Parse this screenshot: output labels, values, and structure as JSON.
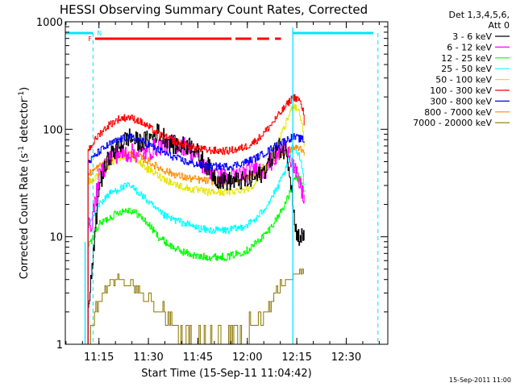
{
  "chart_data": {
    "type": "line",
    "title": "HESSI Observing Summary Count Rates, Corrected",
    "xlabel": "Start Time (15-Sep-11 11:04:42)",
    "ylabel_main": "Corrected Count Rate (s",
    "ylabel_sup1": "-1",
    "ylabel_mid": " detector",
    "ylabel_sup2": "-1",
    "ylabel_end": ")",
    "y_scale": "log",
    "ylim": [
      1,
      1000
    ],
    "xlim_minutes": [
      11.08,
      12.71
    ],
    "xlim": [
      "11:04:42",
      "12:47:30"
    ],
    "x_ticks": [
      "11:15",
      "11:30",
      "11:45",
      "12:00",
      "12:15",
      "12:30"
    ],
    "x_tick_minutes": [
      11.25,
      11.5,
      11.75,
      12.0,
      12.25,
      12.5
    ],
    "y_ticks": [
      "1",
      "10",
      "100",
      "1000"
    ],
    "y_tick_values": [
      1,
      10,
      100,
      1000
    ],
    "legend_header": [
      "Det 1,3,4,5,6,",
      "Att 0"
    ],
    "legend_placement": "right",
    "footer_date": "15-Sep-2011 11:00",
    "flags": {
      "F_label": "F",
      "N_label": "N",
      "night_color": "#00e5ff",
      "flare_color": "#ff0000"
    },
    "series": [
      {
        "name": "3 - 6 keV",
        "color": "#000000",
        "points": [
          [
            11.195,
            2.0
          ],
          [
            11.21,
            4
          ],
          [
            11.25,
            30
          ],
          [
            11.3,
            55
          ],
          [
            11.35,
            70
          ],
          [
            11.4,
            85
          ],
          [
            11.45,
            75
          ],
          [
            11.5,
            80
          ],
          [
            11.55,
            95
          ],
          [
            11.58,
            85
          ],
          [
            11.62,
            72
          ],
          [
            11.67,
            70
          ],
          [
            11.72,
            72
          ],
          [
            11.76,
            55
          ],
          [
            11.8,
            45
          ],
          [
            11.84,
            35
          ],
          [
            11.88,
            33
          ],
          [
            11.92,
            33
          ],
          [
            11.96,
            33
          ],
          [
            12.0,
            33
          ],
          [
            12.04,
            35
          ],
          [
            12.08,
            40
          ],
          [
            12.12,
            55
          ],
          [
            12.16,
            68
          ],
          [
            12.2,
            60
          ],
          [
            12.225,
            28
          ],
          [
            12.24,
            12
          ],
          [
            12.26,
            10
          ],
          [
            12.29,
            10
          ]
        ]
      },
      {
        "name": "6 - 12 keV",
        "color": "#ff00ff",
        "points": [
          [
            11.195,
            12
          ],
          [
            11.21,
            13
          ],
          [
            11.25,
            35
          ],
          [
            11.3,
            55
          ],
          [
            11.35,
            60
          ],
          [
            11.4,
            60
          ],
          [
            11.45,
            60
          ],
          [
            11.5,
            62
          ],
          [
            11.55,
            70
          ],
          [
            11.6,
            72
          ],
          [
            11.65,
            72
          ],
          [
            11.7,
            68
          ],
          [
            11.74,
            55
          ],
          [
            11.78,
            45
          ],
          [
            11.82,
            40
          ],
          [
            11.86,
            38
          ],
          [
            11.88,
            35
          ],
          [
            11.92,
            35
          ],
          [
            11.96,
            38
          ],
          [
            12.0,
            40
          ],
          [
            12.04,
            45
          ],
          [
            12.08,
            40
          ],
          [
            12.12,
            50
          ],
          [
            12.16,
            60
          ],
          [
            12.2,
            70
          ],
          [
            12.24,
            40
          ],
          [
            12.27,
            28
          ],
          [
            12.29,
            22
          ]
        ]
      },
      {
        "name": "12 - 25 keV",
        "color": "#00ff00",
        "points": [
          [
            11.195,
            8
          ],
          [
            11.21,
            9
          ],
          [
            11.25,
            13
          ],
          [
            11.3,
            15
          ],
          [
            11.35,
            17
          ],
          [
            11.4,
            18
          ],
          [
            11.45,
            16
          ],
          [
            11.5,
            13
          ],
          [
            11.55,
            10
          ],
          [
            11.6,
            8.5
          ],
          [
            11.65,
            7.5
          ],
          [
            11.7,
            7
          ],
          [
            11.75,
            6.5
          ],
          [
            11.8,
            6.5
          ],
          [
            11.85,
            6.5
          ],
          [
            11.9,
            6.5
          ],
          [
            11.95,
            7
          ],
          [
            12.0,
            7.5
          ],
          [
            12.05,
            9
          ],
          [
            12.1,
            11
          ],
          [
            12.15,
            15
          ],
          [
            12.2,
            22
          ],
          [
            12.24,
            35
          ],
          [
            12.26,
            35
          ],
          [
            12.28,
            30
          ],
          [
            12.29,
            25
          ]
        ]
      },
      {
        "name": "25 - 50 keV",
        "color": "#00ffff",
        "points": [
          [
            11.195,
            13
          ],
          [
            11.21,
            14
          ],
          [
            11.25,
            20
          ],
          [
            11.3,
            25
          ],
          [
            11.35,
            28
          ],
          [
            11.4,
            30
          ],
          [
            11.45,
            26
          ],
          [
            11.5,
            21
          ],
          [
            11.55,
            17
          ],
          [
            11.6,
            15
          ],
          [
            11.65,
            14
          ],
          [
            11.7,
            13
          ],
          [
            11.75,
            12
          ],
          [
            11.8,
            11.5
          ],
          [
            11.85,
            11.5
          ],
          [
            11.9,
            11.5
          ],
          [
            11.95,
            12
          ],
          [
            12.0,
            13
          ],
          [
            12.05,
            15
          ],
          [
            12.1,
            20
          ],
          [
            12.15,
            28
          ],
          [
            12.2,
            45
          ],
          [
            12.23,
            70
          ],
          [
            12.26,
            60
          ],
          [
            12.28,
            40
          ],
          [
            12.29,
            25
          ]
        ]
      },
      {
        "name": "50 - 100 keV",
        "color": "#e5e500",
        "points": [
          [
            11.195,
            33
          ],
          [
            11.21,
            33
          ],
          [
            11.25,
            38
          ],
          [
            11.3,
            45
          ],
          [
            11.35,
            55
          ],
          [
            11.4,
            58
          ],
          [
            11.45,
            50
          ],
          [
            11.5,
            42
          ],
          [
            11.55,
            37
          ],
          [
            11.6,
            33
          ],
          [
            11.65,
            30
          ],
          [
            11.7,
            28
          ],
          [
            11.75,
            27
          ],
          [
            11.8,
            26
          ],
          [
            11.85,
            26
          ],
          [
            11.9,
            26
          ],
          [
            11.95,
            27
          ],
          [
            12.0,
            28
          ],
          [
            12.05,
            33
          ],
          [
            12.1,
            45
          ],
          [
            12.15,
            70
          ],
          [
            12.2,
            120
          ],
          [
            12.23,
            170
          ],
          [
            12.26,
            150
          ],
          [
            12.28,
            100
          ],
          [
            12.29,
            60
          ]
        ]
      },
      {
        "name": "100 - 300 keV",
        "color": "#ff0000",
        "points": [
          [
            11.195,
            65
          ],
          [
            11.21,
            70
          ],
          [
            11.25,
            90
          ],
          [
            11.3,
            110
          ],
          [
            11.35,
            125
          ],
          [
            11.4,
            130
          ],
          [
            11.45,
            120
          ],
          [
            11.5,
            105
          ],
          [
            11.55,
            90
          ],
          [
            11.6,
            82
          ],
          [
            11.65,
            75
          ],
          [
            11.7,
            70
          ],
          [
            11.75,
            66
          ],
          [
            11.8,
            64
          ],
          [
            11.85,
            63
          ],
          [
            11.9,
            63
          ],
          [
            11.95,
            65
          ],
          [
            12.0,
            70
          ],
          [
            12.05,
            80
          ],
          [
            12.1,
            100
          ],
          [
            12.15,
            130
          ],
          [
            12.2,
            170
          ],
          [
            12.23,
            200
          ],
          [
            12.26,
            190
          ],
          [
            12.28,
            150
          ],
          [
            12.29,
            100
          ]
        ]
      },
      {
        "name": "300 - 800 keV",
        "color": "#0000ff",
        "points": [
          [
            11.195,
            50
          ],
          [
            11.21,
            52
          ],
          [
            11.25,
            62
          ],
          [
            11.3,
            72
          ],
          [
            11.35,
            80
          ],
          [
            11.4,
            85
          ],
          [
            11.45,
            80
          ],
          [
            11.5,
            72
          ],
          [
            11.55,
            64
          ],
          [
            11.6,
            58
          ],
          [
            11.65,
            53
          ],
          [
            11.7,
            49
          ],
          [
            11.75,
            47
          ],
          [
            11.8,
            45
          ],
          [
            11.85,
            45
          ],
          [
            11.9,
            45
          ],
          [
            11.95,
            47
          ],
          [
            12.0,
            50
          ],
          [
            12.05,
            55
          ],
          [
            12.1,
            62
          ],
          [
            12.15,
            72
          ],
          [
            12.2,
            80
          ],
          [
            12.23,
            85
          ],
          [
            12.26,
            82
          ],
          [
            12.28,
            80
          ],
          [
            12.29,
            75
          ]
        ]
      },
      {
        "name": "800 - 7000 keV",
        "color": "#ff8c00",
        "points": [
          [
            11.195,
            38
          ],
          [
            11.21,
            40
          ],
          [
            11.25,
            45
          ],
          [
            11.3,
            52
          ],
          [
            11.35,
            58
          ],
          [
            11.4,
            60
          ],
          [
            11.45,
            56
          ],
          [
            11.5,
            50
          ],
          [
            11.55,
            44
          ],
          [
            11.6,
            40
          ],
          [
            11.65,
            37
          ],
          [
            11.7,
            35
          ],
          [
            11.75,
            34
          ],
          [
            11.8,
            33
          ],
          [
            11.85,
            33
          ],
          [
            11.9,
            33
          ],
          [
            11.95,
            34
          ],
          [
            12.0,
            36
          ],
          [
            12.05,
            40
          ],
          [
            12.1,
            47
          ],
          [
            12.15,
            55
          ],
          [
            12.2,
            62
          ],
          [
            12.23,
            67
          ],
          [
            12.26,
            67
          ],
          [
            12.28,
            65
          ],
          [
            12.29,
            60
          ]
        ]
      },
      {
        "name": "7000 - 20000 keV",
        "color": "#8b7500",
        "points": [
          [
            11.195,
            1.0
          ],
          [
            11.21,
            1.5
          ],
          [
            11.25,
            2.5
          ],
          [
            11.3,
            3.5
          ],
          [
            11.35,
            4
          ],
          [
            11.4,
            3.5
          ],
          [
            11.45,
            3
          ],
          [
            11.5,
            2.5
          ],
          [
            11.55,
            2
          ],
          [
            11.6,
            1.5
          ],
          [
            11.65,
            1.2
          ],
          [
            11.7,
            1.0
          ],
          [
            11.95,
            1.0
          ],
          [
            12.0,
            1.2
          ],
          [
            12.05,
            1.5
          ],
          [
            12.1,
            2
          ],
          [
            12.15,
            3
          ],
          [
            12.2,
            4
          ],
          [
            12.25,
            4.5
          ],
          [
            12.28,
            4.5
          ],
          [
            12.29,
            4
          ]
        ]
      }
    ]
  }
}
